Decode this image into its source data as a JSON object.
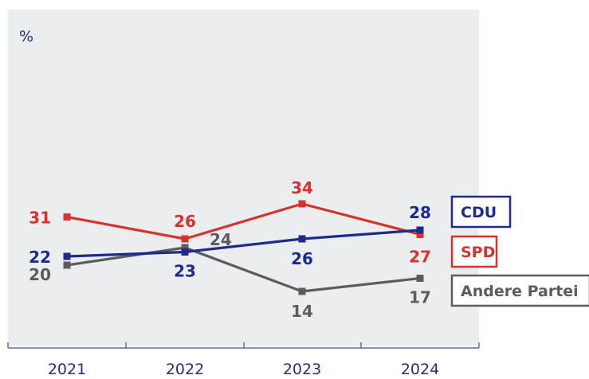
{
  "chart_data": {
    "type": "line",
    "title": "",
    "xlabel": "",
    "ylabel": "%",
    "x": [
      "2021",
      "2022",
      "2023",
      "2024"
    ],
    "ylim": [
      0,
      50
    ],
    "grid": false,
    "legend_position": "right",
    "series": [
      {
        "name": "CDU",
        "values": [
          22,
          23,
          26,
          28
        ],
        "color": "#1f2a8c"
      },
      {
        "name": "SPD",
        "values": [
          31,
          26,
          34,
          27
        ],
        "color": "#d8322e"
      },
      {
        "name": "Andere Partei",
        "values": [
          20,
          24,
          14,
          17
        ],
        "color": "#5c5c5c"
      }
    ]
  },
  "colors": {
    "plot_background": "#ebeeee",
    "axis": "#3c4a9a",
    "tick_text": "#2b2f7a"
  }
}
